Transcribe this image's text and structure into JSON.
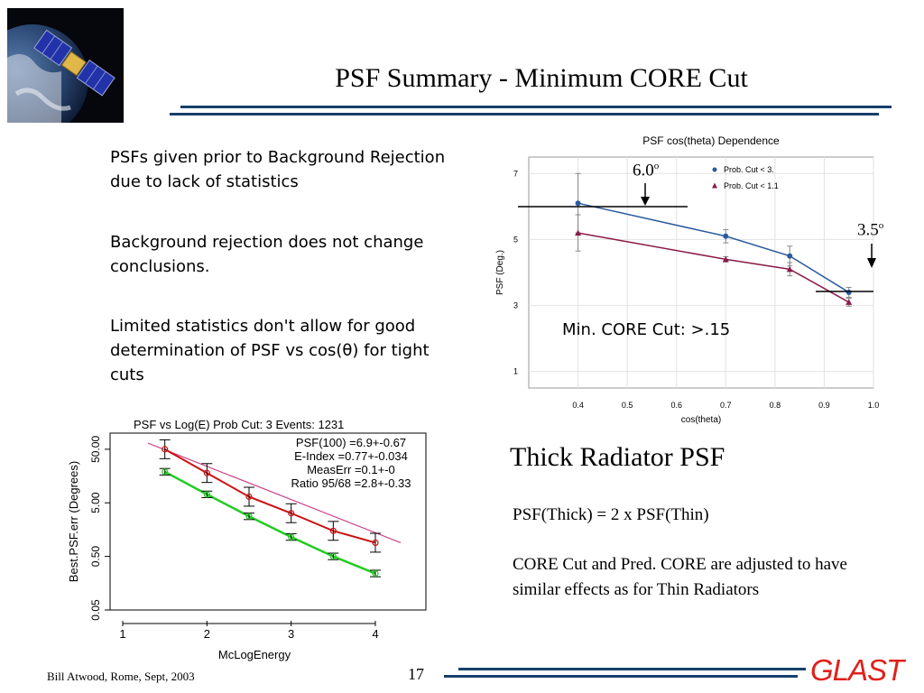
{
  "slide": {
    "title": "PSF Summary - Minimum CORE Cut",
    "bullets": [
      "PSFs given prior to Background Rejection due to lack of statistics",
      "Background rejection does not change conclusions.",
      "Limited statistics don't allow for good determination of PSF vs cos(θ) for tight cuts"
    ],
    "min_core_cut": "Min. CORE Cut: >.15",
    "thick_title": "Thick Radiator PSF",
    "thick_line1": "PSF(Thick) = 2 x PSF(Thin)",
    "thick_line2": "CORE Cut and Pred. CORE are adjusted to have similar effects as for Thin Radiators",
    "footer_author": "Bill Atwood,  Rome, Sept, 2003",
    "page_number": "17",
    "logo_text": "GLAST",
    "annotation_60": "6.0",
    "annotation_35": "3.5",
    "degree_mark": "o"
  },
  "chart_data": [
    {
      "type": "line",
      "title": "PSF cos(theta) Dependence",
      "xlabel": "cos(theta)",
      "ylabel": "PSF (Deg.)",
      "xlim": [
        0.3,
        1.0
      ],
      "ylim": [
        0.5,
        7.5
      ],
      "xticks": [
        0.4,
        0.5,
        0.6,
        0.7,
        0.8,
        0.9,
        1.0
      ],
      "xtick_labels": [
        "0.4",
        "0.5",
        "0.6",
        "0.7",
        "0.8",
        "0.9",
        "1.0"
      ],
      "yticks": [
        1,
        3,
        5,
        7
      ],
      "ytick_labels": [
        "1",
        "3",
        "5",
        "7"
      ],
      "legend_position": "top-right",
      "colors": {
        "series1": "#2b5a9e",
        "series2": "#8b1a4a"
      },
      "series": [
        {
          "name": "Prob. Cut < 3.",
          "marker": "circle",
          "x": [
            0.4,
            0.7,
            0.83,
            0.95
          ],
          "y": [
            6.1,
            5.1,
            4.5,
            3.4
          ],
          "err": [
            0.9,
            0.2,
            0.3,
            0.15
          ]
        },
        {
          "name": "Prob. Cut < 1.1",
          "marker": "triangle",
          "x": [
            0.4,
            0.7,
            0.83,
            0.95
          ],
          "y": [
            5.2,
            4.4,
            4.1,
            3.1
          ],
          "err": [
            0.55,
            0.08,
            0.2,
            0.12
          ]
        }
      ]
    },
    {
      "type": "line",
      "title": "PSF vs Log(E)   Prob Cut: 3  Events: 1231",
      "xlabel": "McLogEnergy",
      "ylabel": "Best.PSF.err (Degrees)",
      "xlim": [
        0.85,
        4.6
      ],
      "ylim": [
        0.05,
        100
      ],
      "yscale": "log",
      "xticks": [
        1,
        2,
        3,
        4
      ],
      "xtick_labels": [
        "1",
        "2",
        "3",
        "4"
      ],
      "yticks": [
        0.05,
        0.5,
        5,
        50
      ],
      "ytick_labels": [
        "0.05",
        "0.50",
        "5.00",
        "50.00"
      ],
      "annotations": [
        "PSF(100) =6.9+-0.67",
        "E-Index =0.77+-0.034",
        "MeasErr =0.1+-0",
        "Ratio 95/68 =2.8+-0.33"
      ],
      "colors": {
        "red": "#cc1111",
        "green": "#22cc22",
        "pink": "#cc4488"
      },
      "series": [
        {
          "name": "",
          "color": "red",
          "marker": "circle",
          "x": [
            1.5,
            2.0,
            2.5,
            3.0,
            3.5,
            4.0
          ],
          "y": [
            50,
            18,
            6.5,
            3.2,
            1.5,
            0.9
          ]
        },
        {
          "name": "",
          "color": "green",
          "marker": "circle",
          "x": [
            1.5,
            2.0,
            2.5,
            3.0,
            3.5,
            4.0
          ],
          "y": [
            19,
            7.2,
            2.8,
            1.15,
            0.5,
            0.24
          ]
        }
      ]
    }
  ]
}
